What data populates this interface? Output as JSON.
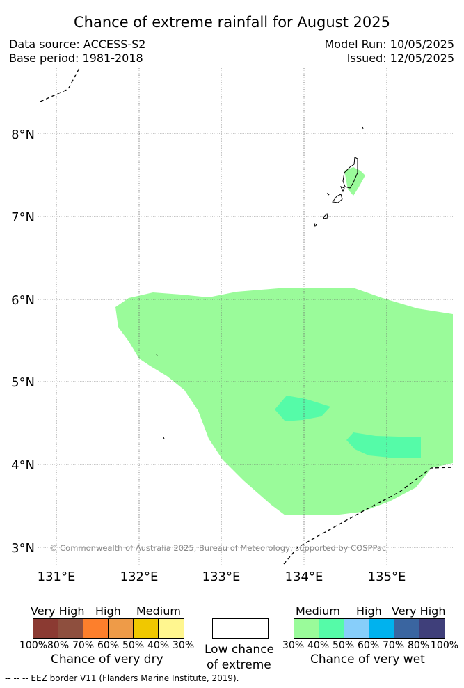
{
  "title": "Chance of extreme rainfall for August 2025",
  "meta": {
    "data_source": "Data source: ACCESS-S2",
    "base_period": "Base period: 1981-2018",
    "model_run": "Model Run: 10/05/2025",
    "issued": "Issued: 12/05/2025"
  },
  "map": {
    "lat_labels": [
      "8°N",
      "7°N",
      "6°N",
      "5°N",
      "4°N",
      "3°N"
    ],
    "lon_labels": [
      "131°E",
      "132°E",
      "133°E",
      "134°E",
      "135°E"
    ],
    "copyright": "© Commonwealth of Australia 2025, Bureau of Meteorology, supported by COSPPac",
    "colors": {
      "wet_30_40": "#9afb9a",
      "wet_40_50": "#55fba8",
      "land_outline": "#000000"
    }
  },
  "legend": {
    "dry": {
      "categories": [
        "Very High",
        "High",
        "Medium"
      ],
      "ticks": [
        "100%",
        "80%",
        "70%",
        "60%",
        "50%",
        "40%",
        "30%"
      ],
      "colors": [
        "#8b3a32",
        "#8e4f3e",
        "#fd7f2c",
        "#ee9b48",
        "#f0c800",
        "#fff68f"
      ],
      "caption": "Chance of very dry"
    },
    "low": {
      "caption_line1": "Low chance",
      "caption_line2": "of extreme",
      "color": "#ffffff"
    },
    "wet": {
      "categories": [
        "Medium",
        "High",
        "Very High"
      ],
      "ticks": [
        "30%",
        "40%",
        "50%",
        "60%",
        "70%",
        "80%",
        "100%"
      ],
      "colors": [
        "#9afb9a",
        "#55fba8",
        "#87cefa",
        "#00b2ee",
        "#3a65a0",
        "#3f3f7a"
      ],
      "caption": "Chance of very wet"
    }
  },
  "footnote": "--  --  -- EEZ border V11 (Flanders Marine Institute, 2019)."
}
